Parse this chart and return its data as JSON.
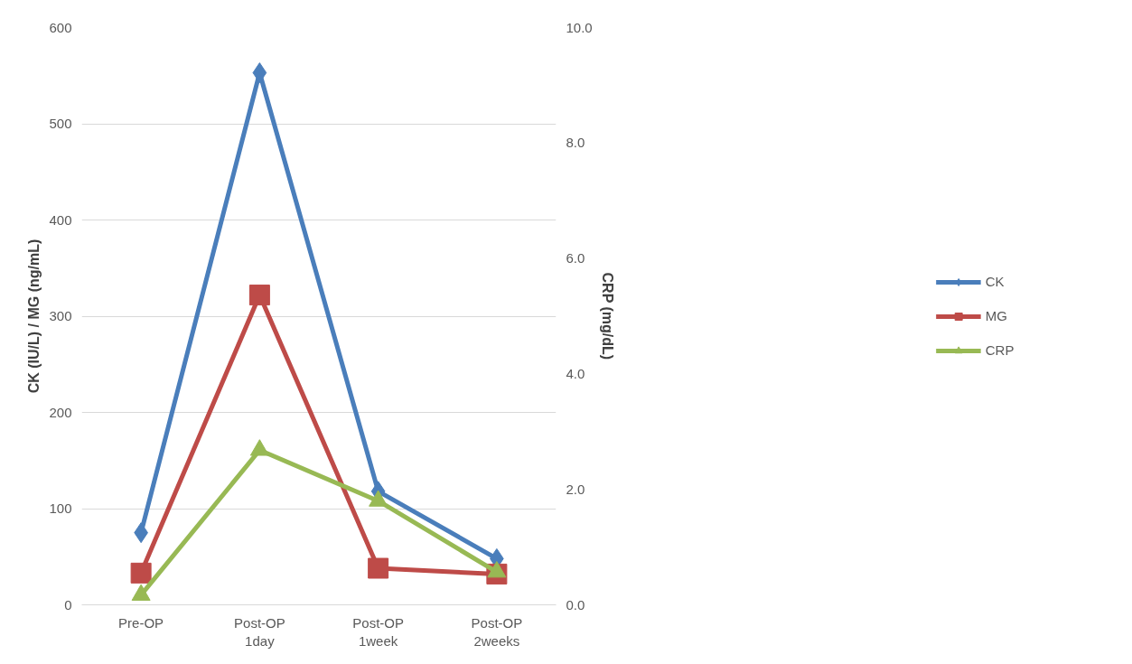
{
  "chart_data": {
    "type": "line",
    "categories": [
      "Pre-OP",
      "Post-OP\n1day",
      "Post-OP\n1week",
      "Post-OP\n2weeks"
    ],
    "ylabel": "CK (IU/L) / MG (ng/mL)",
    "y2label": "CRP (mg/dL)",
    "ylim": [
      0,
      600
    ],
    "yticks": [
      0,
      100,
      200,
      300,
      400,
      500,
      600
    ],
    "y2lim": [
      0,
      10
    ],
    "y2ticks": [
      {
        "value": 0,
        "label": "0.0"
      },
      {
        "value": 2,
        "label": "2.0"
      },
      {
        "value": 4,
        "label": "4.0"
      },
      {
        "value": 6,
        "label": "6.0"
      },
      {
        "value": 8,
        "label": "8.0"
      },
      {
        "value": 10,
        "label": "10.0"
      }
    ],
    "grid": "y",
    "legend": "right",
    "series": [
      {
        "name": "CK",
        "color": "#4a7ebb",
        "marker": "diamond",
        "values": [
          75,
          553,
          118,
          48
        ]
      },
      {
        "name": "MG",
        "color": "#be4b48",
        "marker": "square",
        "values": [
          33,
          322,
          38,
          32
        ]
      },
      {
        "name": "CRP",
        "color": "#98b954",
        "marker": "triangle",
        "axis": "y2",
        "values": [
          0.17,
          2.68,
          1.8,
          0.57
        ]
      }
    ]
  }
}
